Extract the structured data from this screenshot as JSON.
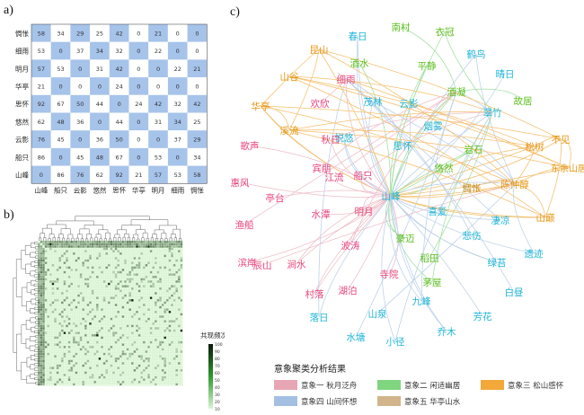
{
  "labels": {
    "a": "a)",
    "b": "b)",
    "c": "c)"
  },
  "chart_data": [
    {
      "type": "table",
      "panel": "a",
      "rows": [
        "惆怅",
        "细雨",
        "明月",
        "华亭",
        "思怀",
        "悠然",
        "云影",
        "船只",
        "山峰"
      ],
      "columns": [
        "山峰",
        "船只",
        "云影",
        "悠然",
        "思怀",
        "华亭",
        "明月",
        "细雨",
        "惆怅"
      ],
      "values": [
        [
          58,
          34,
          29,
          25,
          42,
          0,
          21,
          0,
          0
        ],
        [
          53,
          0,
          37,
          34,
          32,
          0,
          22,
          0,
          0
        ],
        [
          57,
          53,
          0,
          31,
          42,
          0,
          0,
          22,
          21
        ],
        [
          21,
          0,
          0,
          0,
          24,
          0,
          0,
          0,
          0
        ],
        [
          92,
          67,
          50,
          44,
          0,
          24,
          42,
          32,
          42
        ],
        [
          62,
          48,
          36,
          0,
          44,
          0,
          31,
          34,
          25
        ],
        [
          76,
          45,
          0,
          36,
          50,
          0,
          0,
          37,
          29
        ],
        [
          86,
          0,
          45,
          48,
          67,
          0,
          53,
          0,
          34
        ],
        [
          0,
          86,
          76,
          62,
          92,
          21,
          57,
          53,
          58
        ]
      ],
      "colors": {
        "checker_blue": "#a6c3ea",
        "checker_white": "#ffffff"
      }
    },
    {
      "type": "heatmap",
      "panel": "b",
      "colorbar_title": "共现频次/次",
      "colorbar_ticks": [
        "100",
        "90",
        "80",
        "70",
        "60",
        "50",
        "40",
        "30",
        "20",
        "10"
      ],
      "color_range": [
        "#d9f5d4",
        "#0b1a0b"
      ]
    },
    {
      "type": "network",
      "panel": "c",
      "legend_title": "意象聚类分析结果",
      "clusters": [
        {
          "id": 1,
          "name": "意象一 秋月泛舟",
          "color": "#e8a6b4",
          "text_color": "#e8467c"
        },
        {
          "id": 2,
          "name": "意象二 闲适幽居",
          "color": "#7fd67f",
          "text_color": "#5cbf1e"
        },
        {
          "id": 3,
          "name": "意象三 松山感怀",
          "color": "#f2a93a",
          "text_color": "#e69410"
        },
        {
          "id": 4,
          "name": "意象四 山间怀想",
          "color": "#a3c0e3",
          "text_color": "#1eb5d6"
        },
        {
          "id": 5,
          "name": "意象五 华亭山水",
          "color": "#d2b48a",
          "text_color": "#c48a1e"
        }
      ],
      "nodes": [
        {
          "label": "春日",
          "cluster": 4
        },
        {
          "label": "南村",
          "cluster": 2
        },
        {
          "label": "衣冠",
          "cluster": 2
        },
        {
          "label": "昆山",
          "cluster": 3
        },
        {
          "label": "鹤鸟",
          "cluster": 4
        },
        {
          "label": "酒水",
          "cluster": 2
        },
        {
          "label": "平静",
          "cluster": 2
        },
        {
          "label": "山谷",
          "cluster": 3
        },
        {
          "label": "细雨",
          "cluster": 1
        },
        {
          "label": "晴日",
          "cluster": 4
        },
        {
          "label": "酒凝",
          "cluster": 2
        },
        {
          "label": "故居",
          "cluster": 2
        },
        {
          "label": "华亭",
          "cluster": 3
        },
        {
          "label": "欢欣",
          "cluster": 1
        },
        {
          "label": "茂林",
          "cluster": 4
        },
        {
          "label": "云影",
          "cluster": 4
        },
        {
          "label": "翠竹",
          "cluster": 4
        },
        {
          "label": "溪流",
          "cluster": 3
        },
        {
          "label": "悦悠",
          "cluster": 4
        },
        {
          "label": "烟雾",
          "cluster": 4
        },
        {
          "label": "松树",
          "cluster": 3
        },
        {
          "label": "不见",
          "cluster": 3
        },
        {
          "label": "秋日",
          "cluster": 1
        },
        {
          "label": "思怀",
          "cluster": 4
        },
        {
          "label": "岩石",
          "cluster": 2
        },
        {
          "label": "歌声",
          "cluster": 1
        },
        {
          "label": "宾朋",
          "cluster": 1
        },
        {
          "label": "悠然",
          "cluster": 2
        },
        {
          "label": "东余山居",
          "cluster": 3
        },
        {
          "label": "惆怅",
          "cluster": 5
        },
        {
          "label": "陈仲醇",
          "cluster": 3
        },
        {
          "label": "江流",
          "cluster": 1
        },
        {
          "label": "船只",
          "cluster": 1
        },
        {
          "label": "惠风",
          "cluster": 1
        },
        {
          "label": "山峰",
          "cluster": 4
        },
        {
          "label": "亭台",
          "cluster": 1
        },
        {
          "label": "山巅",
          "cluster": 3
        },
        {
          "label": "喜爱",
          "cluster": 4
        },
        {
          "label": "凄凉",
          "cluster": 4
        },
        {
          "label": "水潭",
          "cluster": 1
        },
        {
          "label": "明月",
          "cluster": 1
        },
        {
          "label": "渔船",
          "cluster": 1
        },
        {
          "label": "豪迈",
          "cluster": 2
        },
        {
          "label": "悲伤",
          "cluster": 4
        },
        {
          "label": "遗迹",
          "cluster": 4
        },
        {
          "label": "滨岸",
          "cluster": 1
        },
        {
          "label": "波涛",
          "cluster": 1
        },
        {
          "label": "稻田",
          "cluster": 2
        },
        {
          "label": "绿苔",
          "cluster": 4
        },
        {
          "label": "辰山",
          "cluster": 1
        },
        {
          "label": "涧水",
          "cluster": 1
        },
        {
          "label": "寺院",
          "cluster": 1
        },
        {
          "label": "茅屋",
          "cluster": 2
        },
        {
          "label": "白昼",
          "cluster": 4
        },
        {
          "label": "村落",
          "cluster": 1
        },
        {
          "label": "湖泊",
          "cluster": 1
        },
        {
          "label": "九峰",
          "cluster": 4
        },
        {
          "label": "芳花",
          "cluster": 4
        },
        {
          "label": "落日",
          "cluster": 4
        },
        {
          "label": "山泉",
          "cluster": 4
        },
        {
          "label": "乔木",
          "cluster": 4
        },
        {
          "label": "水塘",
          "cluster": 4
        },
        {
          "label": "小径",
          "cluster": 4
        }
      ]
    }
  ]
}
